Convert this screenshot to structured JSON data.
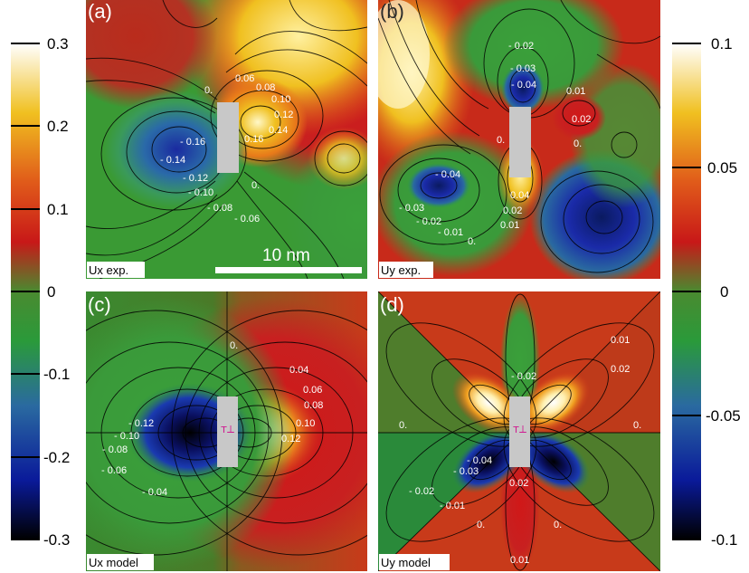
{
  "colorbars": {
    "left": {
      "ticks": [
        "0.3",
        "0.2",
        "0.1",
        "0",
        "-0.1",
        "-0.2",
        "-0.3"
      ]
    },
    "right": {
      "ticks": [
        "0.1",
        "0.05",
        "0",
        "-0.05",
        "-0.1"
      ]
    }
  },
  "panels": {
    "a": {
      "letter": "(a)",
      "tag": "Ux exp.",
      "labels": [
        "0.06",
        "0.08",
        "0.10",
        "0.12",
        "0.14",
        "0.16",
        "0.",
        "- 0.16",
        "- 0.14",
        "- 0.12",
        "- 0.10",
        "- 0.08",
        "- 0.06",
        "0."
      ]
    },
    "b": {
      "letter": "(b)",
      "tag": "Uy exp.",
      "labels": [
        "- 0.02",
        "- 0.03",
        "- 0.04",
        "0.01",
        "0.02",
        "0.",
        "0.",
        "- 0.04",
        "- 0.03",
        "- 0.02",
        "- 0.01",
        "0.",
        "0.04",
        "0.02",
        "0.01"
      ]
    },
    "c": {
      "letter": "(c)",
      "tag": "Ux model",
      "labels": [
        "0.",
        "0.04",
        "0.06",
        "0.08",
        "0.10",
        "0.12",
        "- 0.12",
        "- 0.10",
        "- 0.08",
        "- 0.06",
        "- 0.04"
      ]
    },
    "d": {
      "letter": "(d)",
      "tag": "Uy model",
      "labels": [
        "0.01",
        "0.02",
        "- 0.02",
        "0.",
        "0.",
        "- 0.04",
        "- 0.03",
        "- 0.02",
        "- 0.01",
        "0.",
        "0.02",
        "0.",
        "0.01"
      ]
    }
  },
  "scalebar": {
    "label": "10 nm"
  },
  "colors": {
    "cmap": [
      "#000000",
      "#0a1a9a",
      "#2a6aa0",
      "#2a9a3a",
      "#5aa83a",
      "#c81818",
      "#e05a1a",
      "#f0c020",
      "#ffffff"
    ]
  }
}
